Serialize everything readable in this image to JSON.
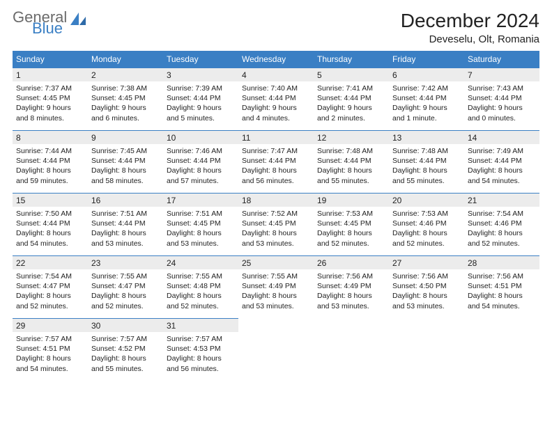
{
  "logo": {
    "word1": "General",
    "word2": "Blue"
  },
  "title": "December 2024",
  "location": "Deveselu, Olt, Romania",
  "dayNames": [
    "Sunday",
    "Monday",
    "Tuesday",
    "Wednesday",
    "Thursday",
    "Friday",
    "Saturday"
  ],
  "colors": {
    "header_bg": "#3a7fc4",
    "header_text": "#ffffff",
    "daynum_bg": "#ececec",
    "daynum_border": "#3a7fc4",
    "body_text": "#222222",
    "logo_gray": "#6b6b6b",
    "logo_blue": "#3a7fc4",
    "page_bg": "#ffffff"
  },
  "weeks": [
    [
      {
        "n": "1",
        "sr": "7:37 AM",
        "ss": "4:45 PM",
        "dl": "9 hours and 8 minutes."
      },
      {
        "n": "2",
        "sr": "7:38 AM",
        "ss": "4:45 PM",
        "dl": "9 hours and 6 minutes."
      },
      {
        "n": "3",
        "sr": "7:39 AM",
        "ss": "4:44 PM",
        "dl": "9 hours and 5 minutes."
      },
      {
        "n": "4",
        "sr": "7:40 AM",
        "ss": "4:44 PM",
        "dl": "9 hours and 4 minutes."
      },
      {
        "n": "5",
        "sr": "7:41 AM",
        "ss": "4:44 PM",
        "dl": "9 hours and 2 minutes."
      },
      {
        "n": "6",
        "sr": "7:42 AM",
        "ss": "4:44 PM",
        "dl": "9 hours and 1 minute."
      },
      {
        "n": "7",
        "sr": "7:43 AM",
        "ss": "4:44 PM",
        "dl": "9 hours and 0 minutes."
      }
    ],
    [
      {
        "n": "8",
        "sr": "7:44 AM",
        "ss": "4:44 PM",
        "dl": "8 hours and 59 minutes."
      },
      {
        "n": "9",
        "sr": "7:45 AM",
        "ss": "4:44 PM",
        "dl": "8 hours and 58 minutes."
      },
      {
        "n": "10",
        "sr": "7:46 AM",
        "ss": "4:44 PM",
        "dl": "8 hours and 57 minutes."
      },
      {
        "n": "11",
        "sr": "7:47 AM",
        "ss": "4:44 PM",
        "dl": "8 hours and 56 minutes."
      },
      {
        "n": "12",
        "sr": "7:48 AM",
        "ss": "4:44 PM",
        "dl": "8 hours and 55 minutes."
      },
      {
        "n": "13",
        "sr": "7:48 AM",
        "ss": "4:44 PM",
        "dl": "8 hours and 55 minutes."
      },
      {
        "n": "14",
        "sr": "7:49 AM",
        "ss": "4:44 PM",
        "dl": "8 hours and 54 minutes."
      }
    ],
    [
      {
        "n": "15",
        "sr": "7:50 AM",
        "ss": "4:44 PM",
        "dl": "8 hours and 54 minutes."
      },
      {
        "n": "16",
        "sr": "7:51 AM",
        "ss": "4:44 PM",
        "dl": "8 hours and 53 minutes."
      },
      {
        "n": "17",
        "sr": "7:51 AM",
        "ss": "4:45 PM",
        "dl": "8 hours and 53 minutes."
      },
      {
        "n": "18",
        "sr": "7:52 AM",
        "ss": "4:45 PM",
        "dl": "8 hours and 53 minutes."
      },
      {
        "n": "19",
        "sr": "7:53 AM",
        "ss": "4:45 PM",
        "dl": "8 hours and 52 minutes."
      },
      {
        "n": "20",
        "sr": "7:53 AM",
        "ss": "4:46 PM",
        "dl": "8 hours and 52 minutes."
      },
      {
        "n": "21",
        "sr": "7:54 AM",
        "ss": "4:46 PM",
        "dl": "8 hours and 52 minutes."
      }
    ],
    [
      {
        "n": "22",
        "sr": "7:54 AM",
        "ss": "4:47 PM",
        "dl": "8 hours and 52 minutes."
      },
      {
        "n": "23",
        "sr": "7:55 AM",
        "ss": "4:47 PM",
        "dl": "8 hours and 52 minutes."
      },
      {
        "n": "24",
        "sr": "7:55 AM",
        "ss": "4:48 PM",
        "dl": "8 hours and 52 minutes."
      },
      {
        "n": "25",
        "sr": "7:55 AM",
        "ss": "4:49 PM",
        "dl": "8 hours and 53 minutes."
      },
      {
        "n": "26",
        "sr": "7:56 AM",
        "ss": "4:49 PM",
        "dl": "8 hours and 53 minutes."
      },
      {
        "n": "27",
        "sr": "7:56 AM",
        "ss": "4:50 PM",
        "dl": "8 hours and 53 minutes."
      },
      {
        "n": "28",
        "sr": "7:56 AM",
        "ss": "4:51 PM",
        "dl": "8 hours and 54 minutes."
      }
    ],
    [
      {
        "n": "29",
        "sr": "7:57 AM",
        "ss": "4:51 PM",
        "dl": "8 hours and 54 minutes."
      },
      {
        "n": "30",
        "sr": "7:57 AM",
        "ss": "4:52 PM",
        "dl": "8 hours and 55 minutes."
      },
      {
        "n": "31",
        "sr": "7:57 AM",
        "ss": "4:53 PM",
        "dl": "8 hours and 56 minutes."
      },
      null,
      null,
      null,
      null
    ]
  ],
  "labels": {
    "sunrise": "Sunrise:",
    "sunset": "Sunset:",
    "daylight": "Daylight:"
  }
}
